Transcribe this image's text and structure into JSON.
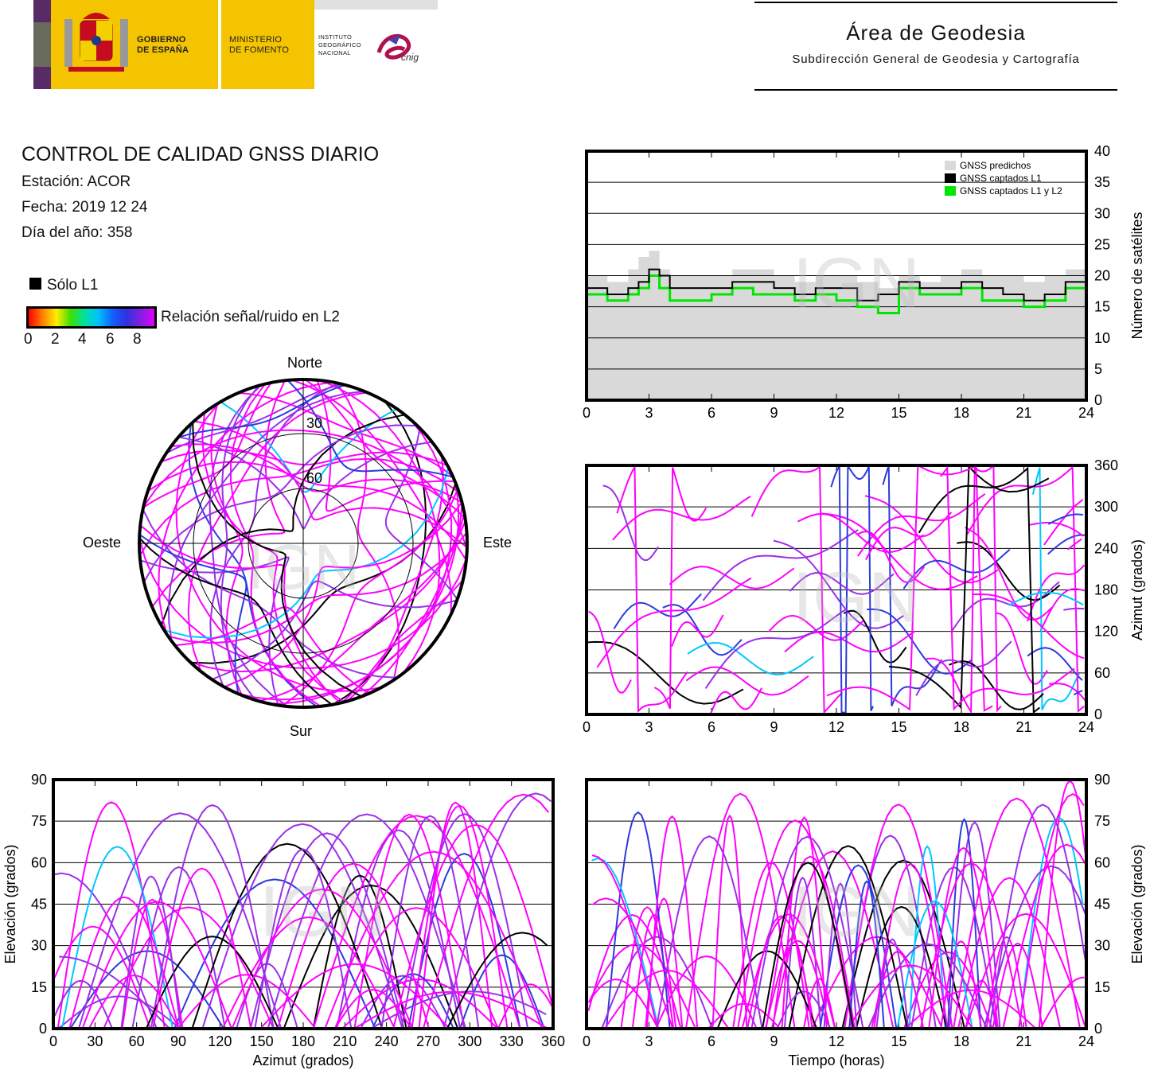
{
  "header": {
    "gov_line1": "GOBIERNO",
    "gov_line2": "DE ESPAÑA",
    "min_line1": "MINISTERIO",
    "min_line2": "DE FOMENTO",
    "ign_line1": "INSTITUTO",
    "ign_line2": "GEOGRÁFICO",
    "ign_line3": "NACIONAL",
    "cnig": "cnig",
    "area_title": "Área de Geodesia",
    "area_subtitle": "Subdirección General de Geodesia y Cartografía"
  },
  "report": {
    "title": "CONTROL DE CALIDAD GNSS DIARIO",
    "station": "Estación: ACOR",
    "date": "Fecha: 2019 12 24",
    "doy": "Día del año: 358",
    "legend_l1": "Sólo L1",
    "legend_snr": "Relación señal/ruido en L2",
    "snr_ticks": [
      "0",
      "2",
      "4",
      "6",
      "8"
    ]
  },
  "watermark": "IGN",
  "colors": {
    "l1_only": "#000000",
    "snr_high": "#ff00ff",
    "snr_mid": "#2b3bdc",
    "snr_low": "#00c8ff",
    "predicted": "#d9d9d9",
    "captured_l1l2": "#00e600"
  },
  "chart_data": [
    {
      "id": "satellite_count",
      "type": "line",
      "x_axis": {
        "ticks": [
          "0",
          "3",
          "6",
          "9",
          "12",
          "15",
          "18",
          "21",
          "24"
        ],
        "range": [
          0,
          24
        ]
      },
      "y_axis": {
        "label": "Número de satélites",
        "ticks": [
          "0",
          "5",
          "10",
          "15",
          "20",
          "25",
          "30",
          "35",
          "40"
        ],
        "range": [
          0,
          40
        ],
        "position": "right"
      },
      "legend": [
        "GNSS predichos",
        "GNSS captados L1",
        "GNSS captados L1 y L2"
      ],
      "legend_position": "top-right",
      "grid": true,
      "series": [
        {
          "name": "GNSS predichos",
          "x": [
            0,
            1,
            2,
            2.5,
            3,
            3.5,
            4,
            5,
            6,
            7,
            8,
            9,
            10,
            11,
            12,
            13,
            14,
            15,
            16,
            17,
            18,
            19,
            20,
            21,
            22,
            23,
            24
          ],
          "y": [
            20,
            19,
            21,
            23,
            24,
            21,
            20,
            20,
            20,
            21,
            21,
            20,
            19,
            20,
            20,
            19,
            18,
            20,
            19,
            20,
            21,
            20,
            20,
            19,
            20,
            21,
            20
          ]
        },
        {
          "name": "GNSS captados L1",
          "x": [
            0,
            1,
            2,
            2.5,
            3,
            3.5,
            4,
            5,
            6,
            7,
            8,
            9,
            10,
            11,
            12,
            13,
            14,
            15,
            16,
            17,
            18,
            19,
            20,
            21,
            22,
            23,
            24
          ],
          "y": [
            18,
            17,
            18,
            19,
            21,
            20,
            18,
            18,
            18,
            19,
            19,
            18,
            17,
            18,
            18,
            16,
            17,
            19,
            18,
            18,
            19,
            18,
            17,
            16,
            17,
            19,
            16
          ]
        },
        {
          "name": "GNSS captados L1 y L2",
          "x": [
            0,
            1,
            2,
            2.5,
            3,
            3.5,
            4,
            5,
            6,
            7,
            8,
            9,
            10,
            11,
            12,
            13,
            14,
            15,
            16,
            17,
            18,
            19,
            20,
            21,
            22,
            23,
            24
          ],
          "y": [
            17,
            16,
            17,
            18,
            20,
            18,
            16,
            16,
            17,
            18,
            17,
            17,
            16,
            17,
            16,
            15,
            14,
            18,
            17,
            17,
            18,
            16,
            16,
            15,
            16,
            18,
            16
          ]
        }
      ]
    },
    {
      "id": "skyplot",
      "type": "scatter",
      "labels": {
        "north": "Norte",
        "south": "Sur",
        "east": "Este",
        "west": "Oeste"
      },
      "rings": [
        "30",
        "60"
      ]
    },
    {
      "id": "azimuth_vs_time",
      "type": "scatter",
      "x_axis": {
        "ticks": [
          "0",
          "3",
          "6",
          "9",
          "12",
          "15",
          "18",
          "21",
          "24"
        ],
        "range": [
          0,
          24
        ]
      },
      "y_axis": {
        "label": "Azimut (grados)",
        "ticks": [
          "0",
          "60",
          "120",
          "180",
          "240",
          "300",
          "360"
        ],
        "range": [
          0,
          360
        ],
        "position": "right"
      },
      "grid": true
    },
    {
      "id": "elevation_vs_azimuth",
      "type": "scatter",
      "x_axis": {
        "label": "Azimut (grados)",
        "ticks": [
          "0",
          "30",
          "60",
          "90",
          "120",
          "150",
          "180",
          "210",
          "240",
          "270",
          "300",
          "330",
          "360"
        ],
        "range": [
          0,
          360
        ]
      },
      "y_axis": {
        "label": "Elevación (grados)",
        "ticks": [
          "0",
          "15",
          "30",
          "45",
          "60",
          "75",
          "90"
        ],
        "range": [
          0,
          90
        ],
        "position": "left"
      },
      "grid": true
    },
    {
      "id": "elevation_vs_time",
      "type": "scatter",
      "x_axis": {
        "label": "Tiempo (horas)",
        "ticks": [
          "0",
          "3",
          "6",
          "9",
          "12",
          "15",
          "18",
          "21",
          "24"
        ],
        "range": [
          0,
          24
        ]
      },
      "y_axis": {
        "label": "Elevación (grados)",
        "ticks": [
          "0",
          "15",
          "30",
          "45",
          "60",
          "75",
          "90"
        ],
        "range": [
          0,
          90
        ],
        "position": "right"
      },
      "grid": true
    }
  ]
}
